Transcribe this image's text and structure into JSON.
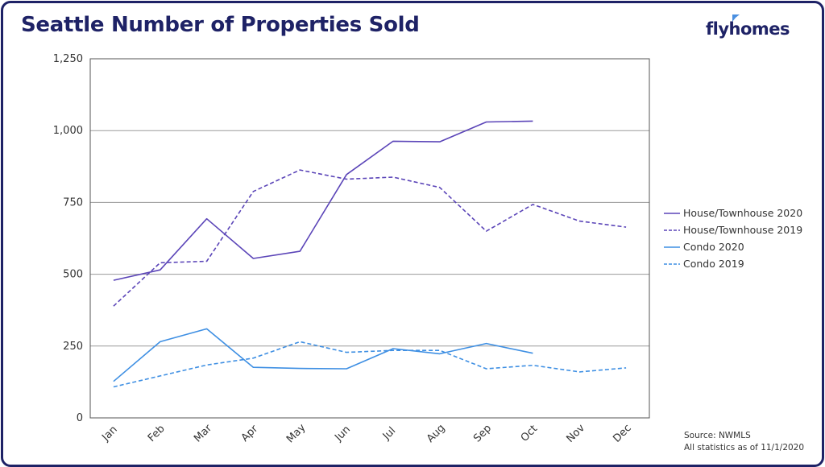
{
  "header": {
    "title": "Seattle Number of Properties Sold",
    "logo_text": "flyhomes",
    "logo_color": "#1e2266",
    "logo_accent_color": "#4a8fe0"
  },
  "footer": {
    "source": "Source: NWMLS",
    "note": "All statistics as of 11/1/2020"
  },
  "chart_data": {
    "type": "line",
    "title": "Seattle Number of Properties Sold",
    "xlabel": "",
    "ylabel": "",
    "categories": [
      "Jan",
      "Feb",
      "Mar",
      "Apr",
      "May",
      "Jun",
      "Jul",
      "Aug",
      "Sep",
      "Oct",
      "Nov",
      "Dec"
    ],
    "ylim": [
      0,
      1250
    ],
    "yticks": [
      0,
      250,
      500,
      750,
      1000,
      1250
    ],
    "ytick_labels": [
      "0",
      "250",
      "500",
      "750",
      "1,000",
      "1,250"
    ],
    "grid": "horizontal",
    "legend_position": "right",
    "series": [
      {
        "name": "House/Townhouse 2020",
        "color": "#5b45b8",
        "dashed": false,
        "values": [
          479,
          515,
          693,
          555,
          580,
          847,
          963,
          961,
          1030,
          1033,
          null,
          null
        ]
      },
      {
        "name": "House/Townhouse 2019",
        "color": "#5b45b8",
        "dashed": true,
        "values": [
          389,
          540,
          545,
          788,
          863,
          831,
          838,
          802,
          650,
          743,
          685,
          664
        ]
      },
      {
        "name": "Condo 2020",
        "color": "#3e8fe3",
        "dashed": false,
        "values": [
          127,
          265,
          310,
          176,
          172,
          171,
          241,
          223,
          259,
          225,
          null,
          null
        ]
      },
      {
        "name": "Condo 2019",
        "color": "#3e8fe3",
        "dashed": true,
        "values": [
          108,
          146,
          184,
          208,
          265,
          228,
          235,
          235,
          171,
          183,
          160,
          174
        ]
      }
    ]
  }
}
